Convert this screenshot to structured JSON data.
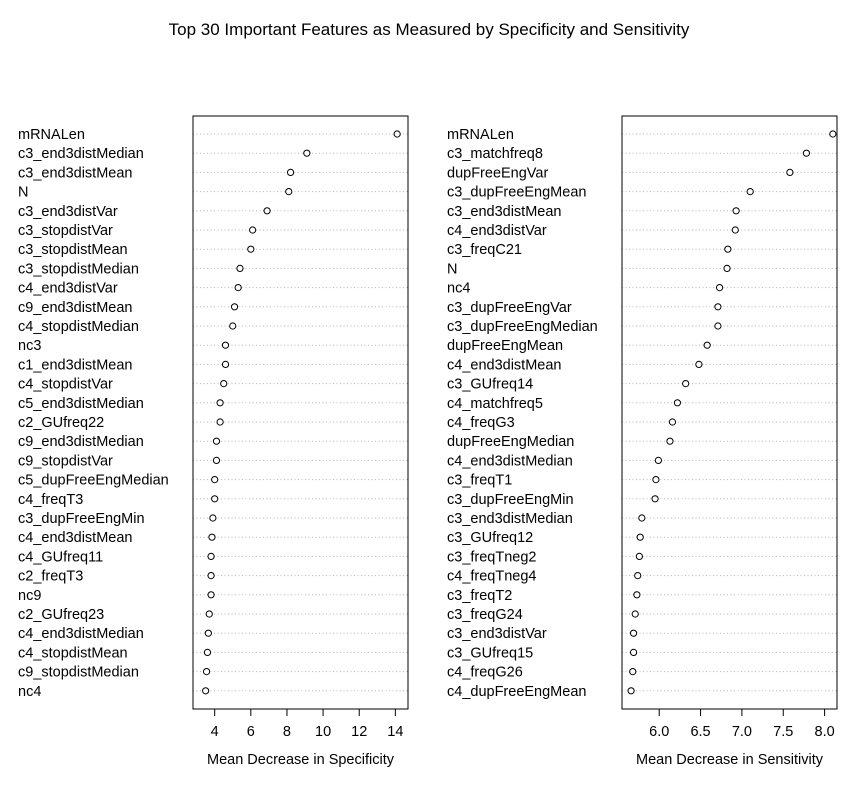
{
  "title": "Top 30 Important Features as Measured by Specificity and Sensitivity",
  "chart_data": [
    {
      "type": "dotchart",
      "xlabel": "Mean Decrease in Specificity",
      "xlim": [
        2.8,
        14.7
      ],
      "xticks": [
        4,
        6,
        8,
        10,
        12,
        14
      ],
      "points": [
        {
          "label": "mRNALen",
          "value": 14.1
        },
        {
          "label": "c3_end3distMedian",
          "value": 9.1
        },
        {
          "label": "c3_end3distMean",
          "value": 8.2
        },
        {
          "label": "N",
          "value": 8.1
        },
        {
          "label": "c3_end3distVar",
          "value": 6.9
        },
        {
          "label": "c3_stopdistVar",
          "value": 6.1
        },
        {
          "label": "c3_stopdistMean",
          "value": 6.0
        },
        {
          "label": "c3_stopdistMedian",
          "value": 5.4
        },
        {
          "label": "c4_end3distVar",
          "value": 5.3
        },
        {
          "label": "c9_end3distMean",
          "value": 5.1
        },
        {
          "label": "c4_stopdistMedian",
          "value": 5.0
        },
        {
          "label": "nc3",
          "value": 4.6
        },
        {
          "label": "c1_end3distMean",
          "value": 4.6
        },
        {
          "label": "c4_stopdistVar",
          "value": 4.5
        },
        {
          "label": "c5_end3distMedian",
          "value": 4.3
        },
        {
          "label": "c2_GUfreq22",
          "value": 4.3
        },
        {
          "label": "c9_end3distMedian",
          "value": 4.1
        },
        {
          "label": "c9_stopdistVar",
          "value": 4.1
        },
        {
          "label": "c5_dupFreeEngMedian",
          "value": 4.0
        },
        {
          "label": "c4_freqT3",
          "value": 4.0
        },
        {
          "label": "c3_dupFreeEngMin",
          "value": 3.9
        },
        {
          "label": "c4_end3distMean",
          "value": 3.85
        },
        {
          "label": "c4_GUfreq11",
          "value": 3.8
        },
        {
          "label": "c2_freqT3",
          "value": 3.8
        },
        {
          "label": "nc9",
          "value": 3.8
        },
        {
          "label": "c2_GUfreq23",
          "value": 3.7
        },
        {
          "label": "c4_end3distMedian",
          "value": 3.65
        },
        {
          "label": "c4_stopdistMean",
          "value": 3.6
        },
        {
          "label": "c9_stopdistMedian",
          "value": 3.55
        },
        {
          "label": "nc4",
          "value": 3.5
        }
      ]
    },
    {
      "type": "dotchart",
      "xlabel": "Mean Decrease in Sensitivity",
      "xlim": [
        5.55,
        8.15
      ],
      "xticks": [
        6.0,
        6.5,
        7.0,
        7.5,
        8.0
      ],
      "xtick_labels": [
        "6.0",
        "6.5",
        "7.0",
        "7.5",
        "8.0"
      ],
      "points": [
        {
          "label": "mRNALen",
          "value": 8.1
        },
        {
          "label": "c3_matchfreq8",
          "value": 7.78
        },
        {
          "label": "dupFreeEngVar",
          "value": 7.58
        },
        {
          "label": "c3_dupFreeEngMean",
          "value": 7.1
        },
        {
          "label": "c3_end3distMean",
          "value": 6.93
        },
        {
          "label": "c4_end3distVar",
          "value": 6.92
        },
        {
          "label": "c3_freqC21",
          "value": 6.83
        },
        {
          "label": "N",
          "value": 6.82
        },
        {
          "label": "nc4",
          "value": 6.73
        },
        {
          "label": "c3_dupFreeEngVar",
          "value": 6.71
        },
        {
          "label": "c3_dupFreeEngMedian",
          "value": 6.71
        },
        {
          "label": "dupFreeEngMean",
          "value": 6.58
        },
        {
          "label": "c4_end3distMean",
          "value": 6.48
        },
        {
          "label": "c3_GUfreq14",
          "value": 6.32
        },
        {
          "label": "c4_matchfreq5",
          "value": 6.22
        },
        {
          "label": "c4_freqG3",
          "value": 6.16
        },
        {
          "label": "dupFreeEngMedian",
          "value": 6.13
        },
        {
          "label": "c4_end3distMedian",
          "value": 5.99
        },
        {
          "label": "c3_freqT1",
          "value": 5.96
        },
        {
          "label": "c3_dupFreeEngMin",
          "value": 5.95
        },
        {
          "label": "c3_end3distMedian",
          "value": 5.79
        },
        {
          "label": "c3_GUfreq12",
          "value": 5.77
        },
        {
          "label": "c3_freqTneg2",
          "value": 5.76
        },
        {
          "label": "c4_freqTneg4",
          "value": 5.74
        },
        {
          "label": "c3_freqT2",
          "value": 5.73
        },
        {
          "label": "c3_freqG24",
          "value": 5.71
        },
        {
          "label": "c3_end3distVar",
          "value": 5.69
        },
        {
          "label": "c3_GUfreq15",
          "value": 5.69
        },
        {
          "label": "c4_freqG26",
          "value": 5.68
        },
        {
          "label": "c4_dupFreeEngMean",
          "value": 5.66
        }
      ]
    }
  ]
}
